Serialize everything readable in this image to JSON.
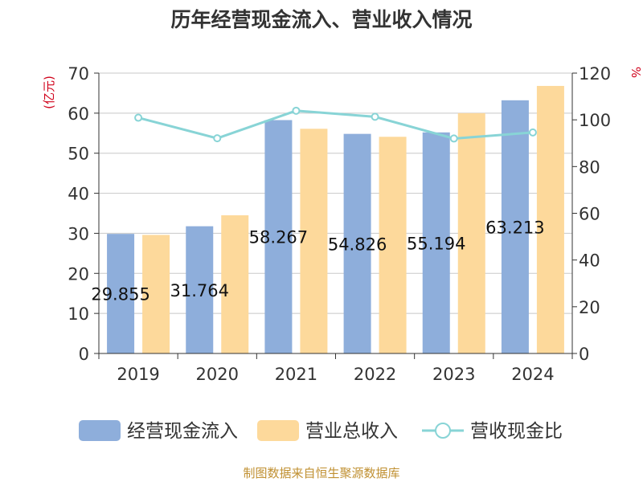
{
  "chart_data": {
    "type": "bar",
    "title": "历年经营现金流入、营业收入情况",
    "categories": [
      "2019",
      "2020",
      "2021",
      "2022",
      "2023",
      "2024"
    ],
    "series": [
      {
        "name": "经营现金流入",
        "kind": "bar",
        "axis": "left",
        "color": "#8eaedb",
        "values": [
          29.855,
          31.764,
          58.267,
          54.826,
          55.194,
          63.213
        ],
        "labels": [
          "29.855",
          "31.764",
          "58.267",
          "54.826",
          "55.194",
          "63.213"
        ]
      },
      {
        "name": "营业总收入",
        "kind": "bar",
        "axis": "left",
        "color": "#fdd99b",
        "values": [
          29.6,
          34.5,
          56.1,
          54.1,
          60.0,
          66.8
        ]
      },
      {
        "name": "营收现金比",
        "kind": "line",
        "axis": "right",
        "color": "#88d4d6",
        "values": [
          100.9,
          92.1,
          103.9,
          101.3,
          92.0,
          94.6
        ]
      }
    ],
    "ylabel_left": "(亿元)",
    "ylabel_right": "%",
    "ylim_left": [
      0,
      70
    ],
    "ylim_right": [
      0,
      120
    ],
    "yticks_left": [
      "0",
      "10",
      "20",
      "30",
      "40",
      "50",
      "60",
      "70"
    ],
    "yticks_right": [
      "0",
      "20",
      "40",
      "60",
      "80",
      "100",
      "120"
    ],
    "grid": true,
    "legend_position": "bottom",
    "source": "制图数据来自恒生聚源数据库"
  },
  "colors": {
    "title": "#333333",
    "axis": "#333333",
    "grid": "#c8c8c8",
    "unit_label": "#d0021b",
    "source": "#c09032",
    "label": "#111111"
  }
}
